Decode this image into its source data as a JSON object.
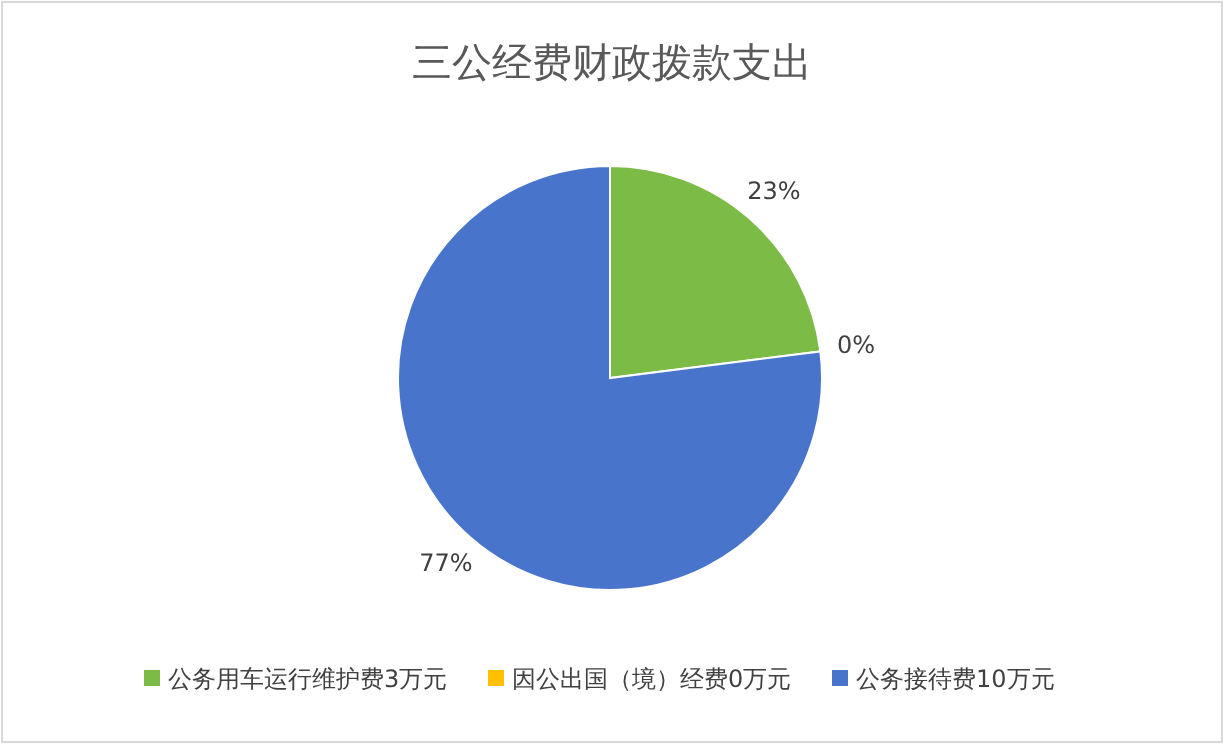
{
  "chart_data": {
    "type": "pie",
    "title": "三公经费财政拨款支出",
    "categories": [
      "公务用车运行维护费3万元",
      "因公出国（境）经费0万元",
      "公务接待费10万元"
    ],
    "values": [
      23,
      0,
      77
    ],
    "colors": [
      "#7cbb45",
      "#ffc000",
      "#4874cb"
    ],
    "value_labels": [
      "23%",
      "0%",
      "77%"
    ],
    "legend": "bottom"
  }
}
